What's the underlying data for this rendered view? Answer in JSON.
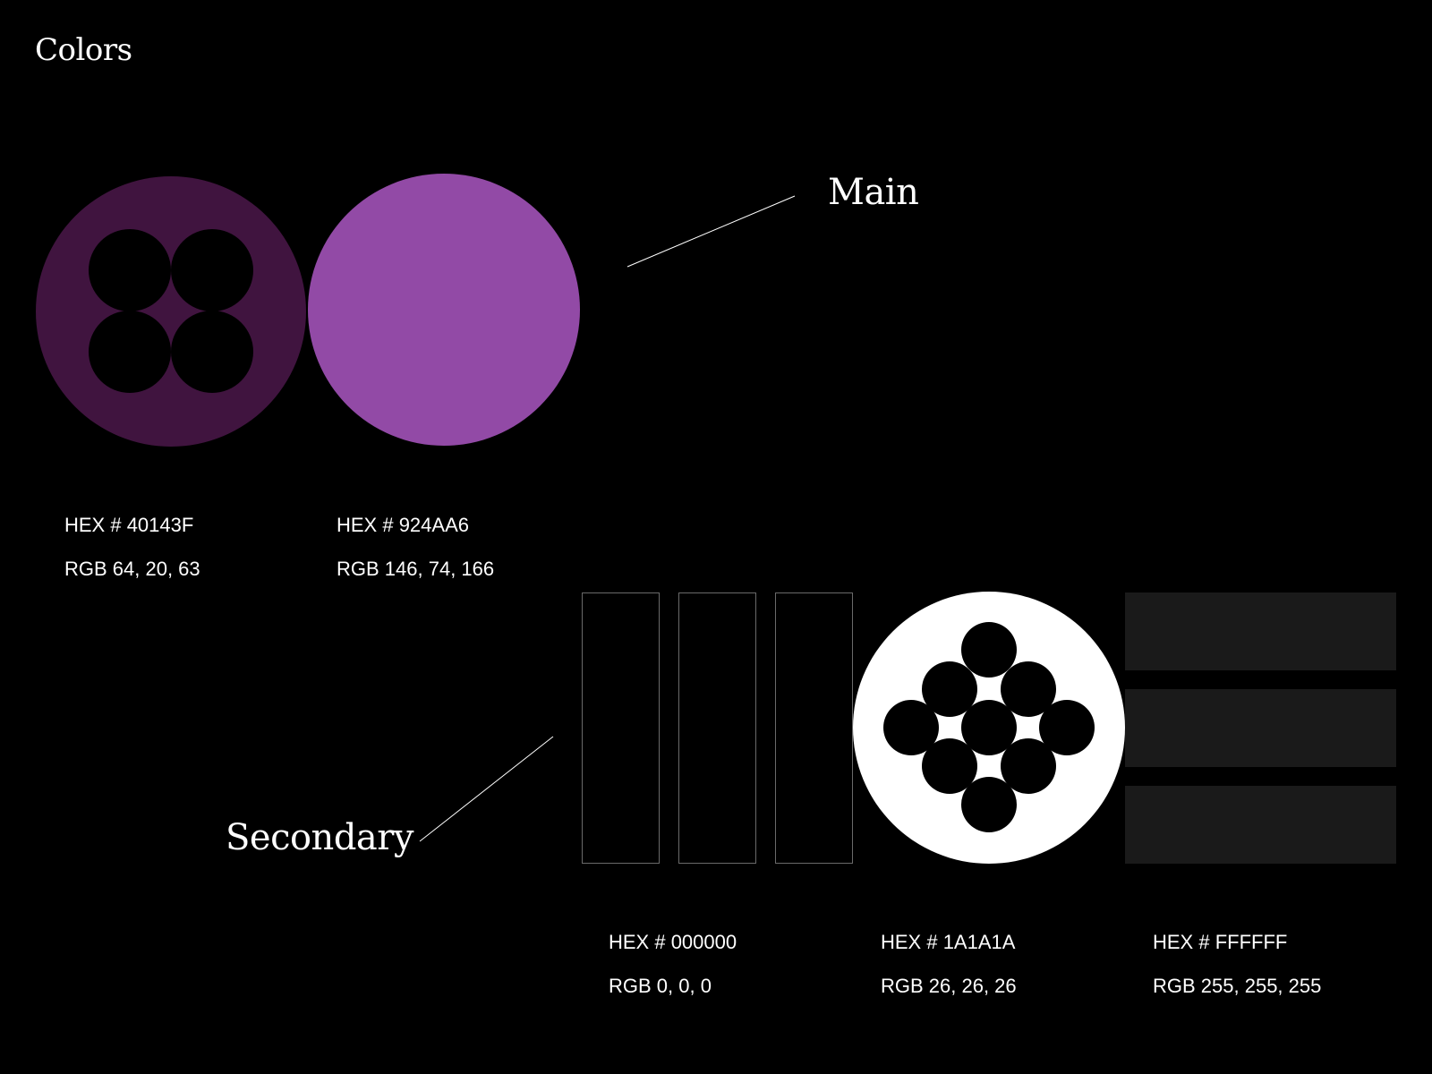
{
  "title": "Colors",
  "groups": {
    "main_label": "Main",
    "secondary_label": "Secondary"
  },
  "swatches": [
    {
      "hex_label": "HEX # 40143F",
      "rgb_label": "RGB 64, 20, 63",
      "color": "#40143F"
    },
    {
      "hex_label": "HEX # 924AA6",
      "rgb_label": "RGB 146, 74, 166",
      "color": "#924AA6"
    },
    {
      "hex_label": "HEX # 000000",
      "rgb_label": "RGB 0, 0, 0",
      "color": "#000000"
    },
    {
      "hex_label": "HEX # 1A1A1A",
      "rgb_label": "RGB 26, 26, 26",
      "color": "#1A1A1A"
    },
    {
      "hex_label": "HEX # FFFFFF",
      "rgb_label": "RGB 255, 255, 255",
      "color": "#FFFFFF"
    }
  ]
}
